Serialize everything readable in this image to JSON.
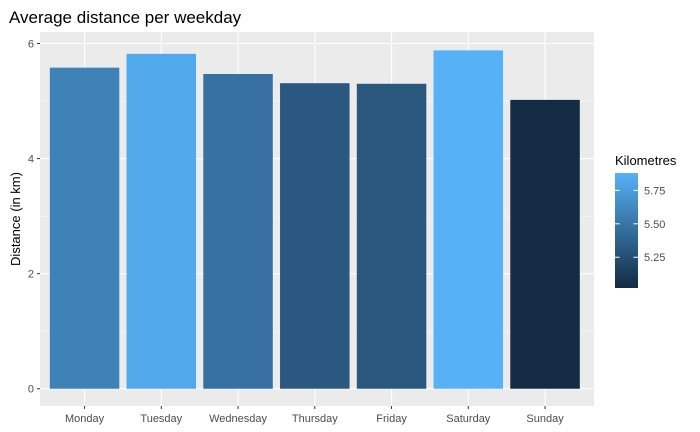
{
  "chart_data": {
    "type": "bar",
    "title": "Average distance per weekday",
    "xlabel": "",
    "ylabel": "Distance (in km)",
    "categories": [
      "Monday",
      "Tuesday",
      "Wednesday",
      "Thursday",
      "Friday",
      "Saturday",
      "Sunday"
    ],
    "values": [
      5.58,
      5.82,
      5.47,
      5.31,
      5.3,
      5.88,
      5.02
    ],
    "ylim": [
      0,
      6.2
    ],
    "yticks": [
      "0",
      "2",
      "4",
      "6"
    ],
    "grid": true,
    "legend": {
      "title": "Kilometres",
      "position": "right",
      "labels": [
        "5.25",
        "5.50",
        "5.75"
      ],
      "range": [
        5.02,
        5.88
      ]
    },
    "colors": {
      "low": "#132B43",
      "high": "#56B1F7",
      "panel": "#EBEBEB",
      "grid_major": "#FFFFFF"
    }
  }
}
